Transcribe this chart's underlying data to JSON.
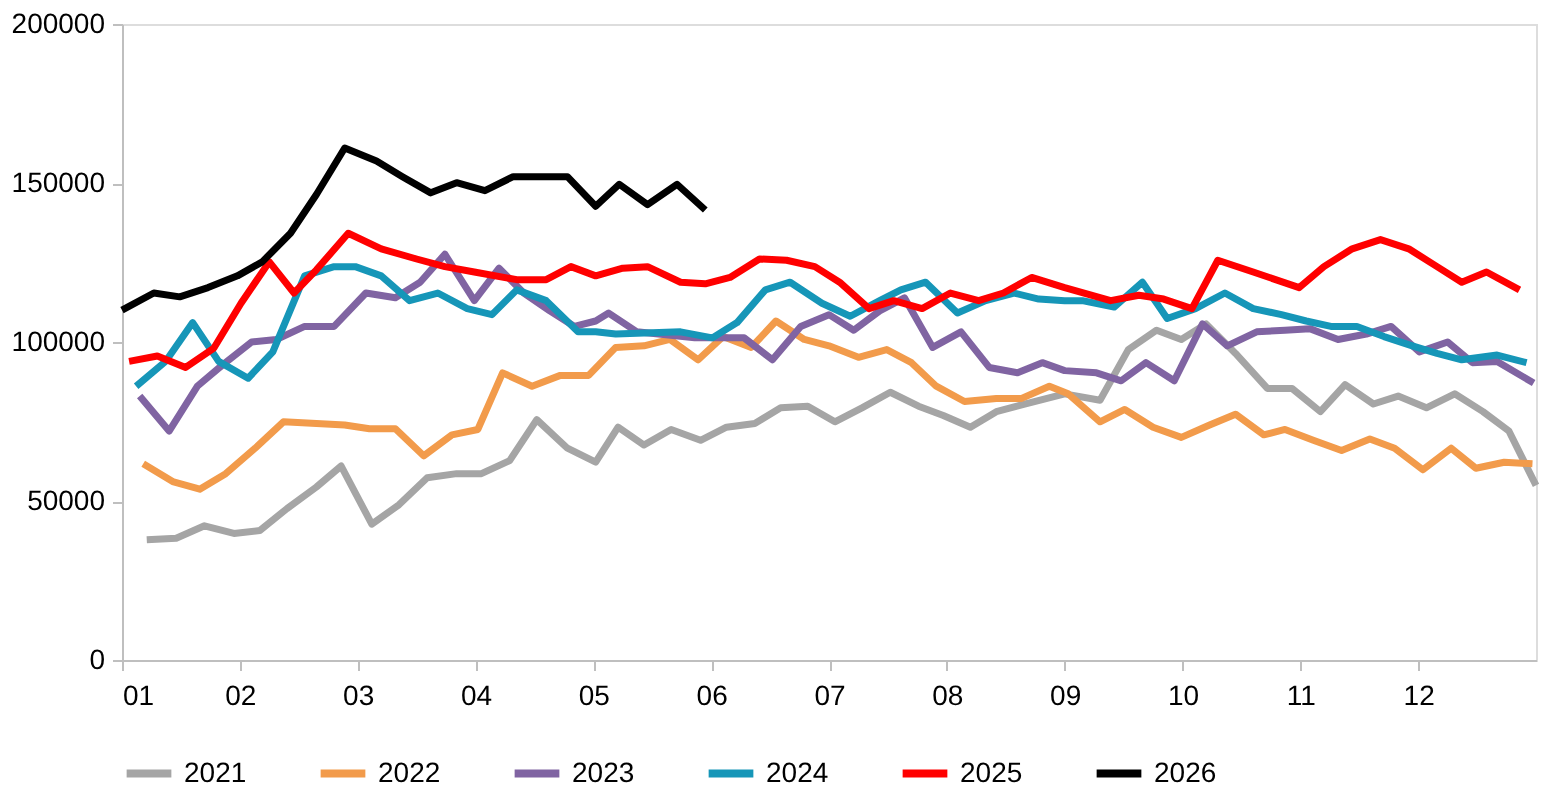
{
  "chart_data": {
    "type": "line",
    "xlim": [
      1,
      13
    ],
    "xticks": [
      {
        "value": 1,
        "label": "01"
      },
      {
        "value": 2,
        "label": "02"
      },
      {
        "value": 3,
        "label": "03"
      },
      {
        "value": 4,
        "label": "04"
      },
      {
        "value": 5,
        "label": "05"
      },
      {
        "value": 6,
        "label": "06"
      },
      {
        "value": 7,
        "label": "07"
      },
      {
        "value": 8,
        "label": "08"
      },
      {
        "value": 9,
        "label": "09"
      },
      {
        "value": 10,
        "label": "10"
      },
      {
        "value": 11,
        "label": "11"
      },
      {
        "value": 12,
        "label": "12"
      }
    ],
    "ylim": [
      0,
      200000
    ],
    "yticks": [
      0,
      50000,
      100000,
      150000,
      200000
    ],
    "grid": false,
    "legend": "bottom",
    "marker": "none",
    "line_style": "solid",
    "series": [
      {
        "name": "2021",
        "color": "#a5a5a5",
        "x": [
          1.21,
          1.46,
          1.7,
          1.95,
          2.17,
          2.4,
          2.65,
          2.86,
          3.12,
          3.35,
          3.59,
          3.84,
          4.05,
          4.29,
          4.52,
          4.78,
          5.02,
          5.21,
          5.43,
          5.66,
          5.91,
          6.13,
          6.37,
          6.59,
          6.82,
          7.05,
          7.28,
          7.52,
          7.76,
          7.97,
          8.2,
          8.42,
          8.66,
          9.0,
          9.3,
          9.54,
          9.78,
          9.99,
          10.2,
          10.45,
          10.72,
          10.93,
          11.17,
          11.38,
          11.62,
          11.83,
          12.07,
          12.31,
          12.55,
          12.77,
          13.0
        ],
        "values": [
          37800,
          38300,
          42200,
          39800,
          40700,
          47600,
          54400,
          61000,
          42700,
          48800,
          57300,
          58600,
          58600,
          62700,
          75600,
          66600,
          62200,
          73200,
          67600,
          72500,
          69100,
          73200,
          74400,
          79300,
          79800,
          74900,
          79300,
          84200,
          79800,
          76900,
          73200,
          78100,
          80500,
          83700,
          81700,
          97600,
          103700,
          100800,
          105700,
          96400,
          85400,
          85400,
          78100,
          86600,
          80500,
          83000,
          79300,
          83700,
          78100,
          72000,
          54900
        ]
      },
      {
        "name": "2022",
        "color": "#f29b4b",
        "x": [
          1.18,
          1.43,
          1.66,
          1.88,
          2.13,
          2.37,
          2.65,
          2.89,
          3.1,
          3.32,
          3.56,
          3.8,
          4.02,
          4.23,
          4.48,
          4.72,
          4.96,
          5.19,
          5.43,
          5.65,
          5.89,
          6.1,
          6.34,
          6.55,
          6.79,
          7.0,
          7.25,
          7.49,
          7.7,
          7.91,
          8.15,
          8.42,
          8.63,
          8.87,
          9.03,
          9.3,
          9.51,
          9.75,
          9.99,
          10.23,
          10.45,
          10.69,
          10.87,
          11.11,
          11.35,
          11.59,
          11.8,
          12.04,
          12.28,
          12.49,
          12.73,
          12.97
        ],
        "values": [
          61700,
          56100,
          53700,
          58600,
          66600,
          74900,
          74400,
          73900,
          72700,
          72700,
          64200,
          70800,
          72500,
          90300,
          86100,
          89500,
          89500,
          98300,
          98800,
          100800,
          94400,
          101700,
          98300,
          106600,
          100800,
          98800,
          95200,
          97600,
          93500,
          86100,
          81300,
          82200,
          82200,
          86100,
          83700,
          74900,
          78800,
          73200,
          70000,
          73900,
          77300,
          70800,
          72500,
          69100,
          65900,
          69500,
          66600,
          59800,
          66600,
          60300,
          62200,
          61700
        ]
      },
      {
        "name": "2023",
        "color": "#8064a2",
        "x": [
          1.15,
          1.4,
          1.64,
          1.85,
          2.1,
          2.31,
          2.55,
          2.8,
          3.07,
          3.32,
          3.53,
          3.74,
          3.99,
          4.2,
          4.41,
          4.63,
          4.84,
          5.02,
          5.13,
          5.37,
          5.86,
          6.28,
          6.52,
          6.76,
          7.0,
          7.21,
          7.43,
          7.64,
          7.88,
          8.12,
          8.36,
          8.6,
          8.81,
          9.0,
          9.27,
          9.48,
          9.69,
          9.93,
          10.17,
          10.38,
          10.63,
          10.87,
          11.08,
          11.32,
          11.56,
          11.77,
          12.01,
          12.25,
          12.46,
          12.67,
          12.98
        ],
        "values": [
          83000,
          72000,
          86100,
          92700,
          100000,
          100800,
          104900,
          104900,
          115400,
          113900,
          118800,
          127600,
          113000,
          123200,
          115400,
          109800,
          104900,
          106600,
          109100,
          103200,
          101300,
          101300,
          94400,
          104900,
          108600,
          103700,
          109800,
          113900,
          98300,
          103200,
          92000,
          90300,
          93500,
          91000,
          90300,
          87800,
          93500,
          87800,
          105700,
          98800,
          103200,
          103700,
          104200,
          100800,
          102500,
          104900,
          96900,
          100000,
          93500,
          93900,
          87100
        ]
      },
      {
        "name": "2024",
        "color": "#1696b8",
        "x": [
          1.12,
          1.37,
          1.6,
          1.82,
          2.07,
          2.28,
          2.55,
          2.8,
          2.98,
          3.2,
          3.44,
          3.68,
          3.93,
          4.14,
          4.35,
          4.6,
          4.87,
          5.02,
          5.19,
          5.74,
          6.01,
          6.22,
          6.46,
          6.67,
          6.94,
          7.18,
          7.43,
          7.61,
          7.82,
          8.09,
          8.33,
          8.57,
          8.78,
          9.0,
          9.15,
          9.42,
          9.66,
          9.87,
          10.11,
          10.36,
          10.6,
          10.84,
          11.05,
          11.26,
          11.48,
          11.71,
          11.95,
          12.16,
          12.37,
          12.67,
          12.92
        ],
        "values": [
          86100,
          93900,
          106100,
          93900,
          88600,
          96900,
          120800,
          123700,
          123700,
          120800,
          113000,
          115400,
          110500,
          108600,
          116400,
          113000,
          103200,
          103200,
          102500,
          103200,
          101300,
          106100,
          116400,
          118800,
          112200,
          108100,
          113000,
          116400,
          118800,
          109100,
          113000,
          115400,
          113500,
          113000,
          113000,
          111000,
          118800,
          107400,
          110500,
          115400,
          110500,
          108600,
          106600,
          104900,
          104900,
          101700,
          98800,
          96400,
          94400,
          95900,
          93500
        ]
      },
      {
        "name": "2025",
        "color": "#ff0000",
        "x": [
          1.06,
          1.3,
          1.54,
          1.78,
          2.01,
          2.25,
          2.46,
          2.65,
          2.92,
          3.2,
          3.5,
          3.74,
          3.99,
          4.35,
          4.6,
          4.81,
          5.02,
          5.25,
          5.46,
          5.74,
          5.95,
          6.16,
          6.41,
          6.64,
          6.88,
          7.09,
          7.34,
          7.55,
          7.79,
          8.03,
          8.27,
          8.48,
          8.72,
          9.0,
          9.39,
          9.63,
          9.84,
          10.08,
          10.3,
          10.6,
          10.99,
          11.2,
          11.44,
          11.68,
          11.92,
          12.16,
          12.37,
          12.58,
          12.86
        ],
        "values": [
          93900,
          95600,
          92000,
          98100,
          112200,
          125200,
          115400,
          122700,
          134200,
          129300,
          126100,
          123700,
          122000,
          119600,
          119600,
          123700,
          120800,
          123200,
          123700,
          118800,
          118300,
          120300,
          126100,
          125700,
          123700,
          118800,
          110500,
          113000,
          110500,
          115400,
          113000,
          115400,
          120300,
          117100,
          113000,
          114700,
          113500,
          110500,
          125700,
          122000,
          117100,
          123700,
          129300,
          132200,
          129300,
          123700,
          118800,
          122000,
          116400
        ]
      },
      {
        "name": "2026",
        "color": "#000000",
        "x": [
          1.0,
          1.27,
          1.49,
          1.73,
          1.98,
          2.19,
          2.43,
          2.65,
          2.89,
          3.16,
          3.38,
          3.62,
          3.84,
          4.08,
          4.32,
          4.78,
          5.02,
          5.22,
          5.46,
          5.71,
          5.95
        ],
        "values": [
          110000,
          115400,
          114200,
          117100,
          120800,
          125200,
          134200,
          146400,
          161000,
          156900,
          152000,
          146900,
          150100,
          147600,
          152000,
          152000,
          142700,
          149600,
          143200,
          149600,
          141500
        ]
      }
    ]
  }
}
